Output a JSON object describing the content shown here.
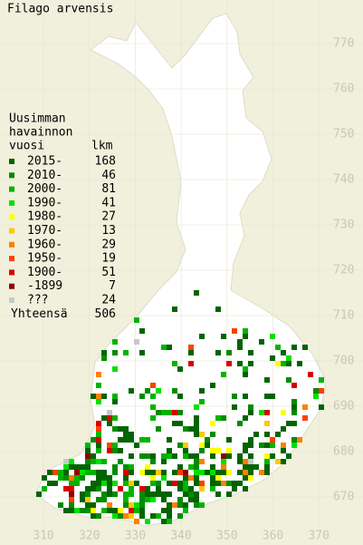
{
  "title": "Filago arvensis",
  "legend": {
    "title_lines": [
      "Uusimman",
      "havainnon",
      "vuosi"
    ],
    "count_header": "lkm",
    "items": [
      {
        "label": "2015-",
        "count": 168,
        "color": "#006400"
      },
      {
        "label": "2010-",
        "count": 46,
        "color": "#008c00"
      },
      {
        "label": "2000-",
        "count": 81,
        "color": "#00b400"
      },
      {
        "label": "1990-",
        "count": 41,
        "color": "#00e000"
      },
      {
        "label": "1980-",
        "count": 27,
        "color": "#ffff00"
      },
      {
        "label": "1970-",
        "count": 13,
        "color": "#ffc800"
      },
      {
        "label": "1960-",
        "count": 29,
        "color": "#ff8000"
      },
      {
        "label": "1950-",
        "count": 19,
        "color": "#ff4000"
      },
      {
        "label": "1900-",
        "count": 51,
        "color": "#d80000"
      },
      {
        "label": "-1899",
        "count": 7,
        "color": "#900000"
      },
      {
        "label": "???",
        "count": 24,
        "color": "#c8c8c8"
      }
    ],
    "total_label": "Yhteensä",
    "total": 506
  },
  "northing_ticks": [
    770,
    760,
    750,
    740,
    730,
    720,
    710,
    700,
    690,
    680,
    670
  ],
  "easting_ticks": [
    310,
    320,
    330,
    340,
    350,
    360,
    370
  ]
}
